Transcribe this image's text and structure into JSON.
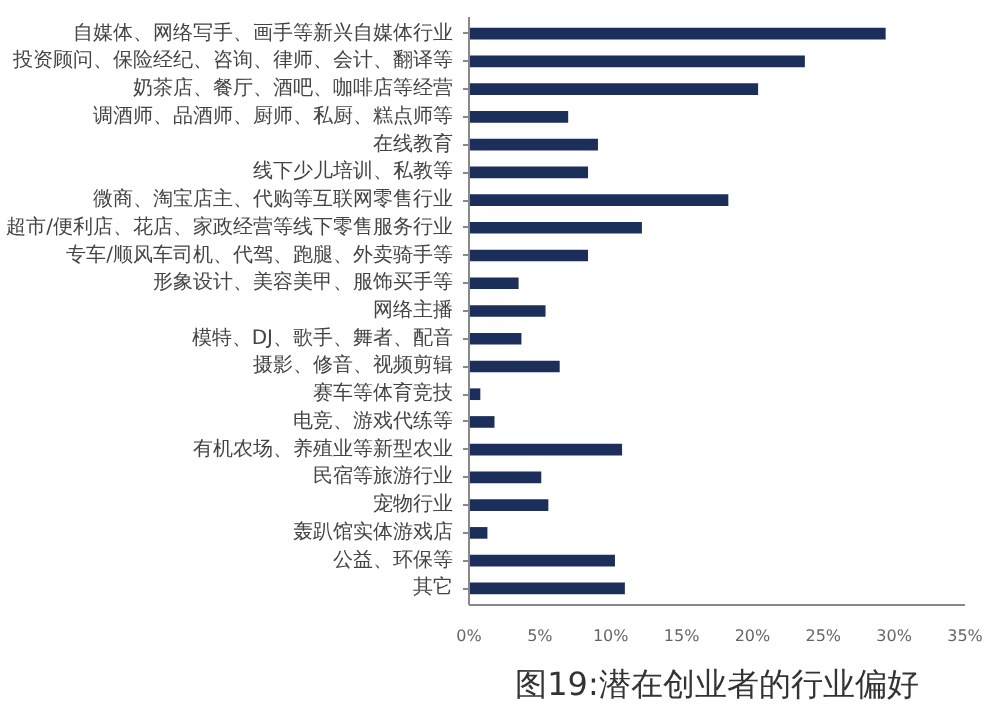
{
  "chart_data": {
    "type": "bar",
    "orientation": "horizontal",
    "title": "图19:潜在创业者的行业偏好",
    "categories": [
      "自媒体、网络写手、画手等新兴自媒体行业",
      "投资顾问、保险经纪、咨询、律师、会计、翻译等",
      "奶茶店、餐厅、酒吧、咖啡店等经营",
      "调酒师、品酒师、厨师、私厨、糕点师等",
      "在线教育",
      "线下少儿培训、私教等",
      "微商、淘宝店主、代购等互联网零售行业",
      "超市/便利店、花店、家政经营等线下零售服务行业",
      "专车/顺风车司机、代驾、跑腿、外卖骑手等",
      "形象设计、美容美甲、服饰买手等",
      "网络主播",
      "模特、DJ、歌手、舞者、配音",
      "摄影、修音、视频剪辑",
      "赛车等体育竞技",
      "电竞、游戏代练等",
      "有机农场、养殖业等新型农业",
      "民宿等旅游行业",
      "宠物行业",
      "轰趴馆实体游戏店",
      "公益、环保等",
      "其它"
    ],
    "values": [
      29.4,
      23.7,
      20.4,
      7.0,
      9.1,
      8.4,
      18.3,
      12.2,
      8.4,
      3.5,
      5.4,
      3.7,
      6.4,
      0.8,
      1.8,
      10.8,
      5.1,
      5.6,
      1.3,
      10.3,
      11.0
    ],
    "color": "#1c2f5a",
    "xlim": [
      0,
      35
    ],
    "xticks": [
      {
        "value": 0,
        "label": "0%"
      },
      {
        "value": 5,
        "label": "5%"
      },
      {
        "value": 10,
        "label": "10%"
      },
      {
        "value": 15,
        "label": "15%"
      },
      {
        "value": 20,
        "label": "20%"
      },
      {
        "value": 25,
        "label": "25%"
      },
      {
        "value": 30,
        "label": "30%"
      },
      {
        "value": 35,
        "label": "35%"
      }
    ],
    "grid": false
  }
}
